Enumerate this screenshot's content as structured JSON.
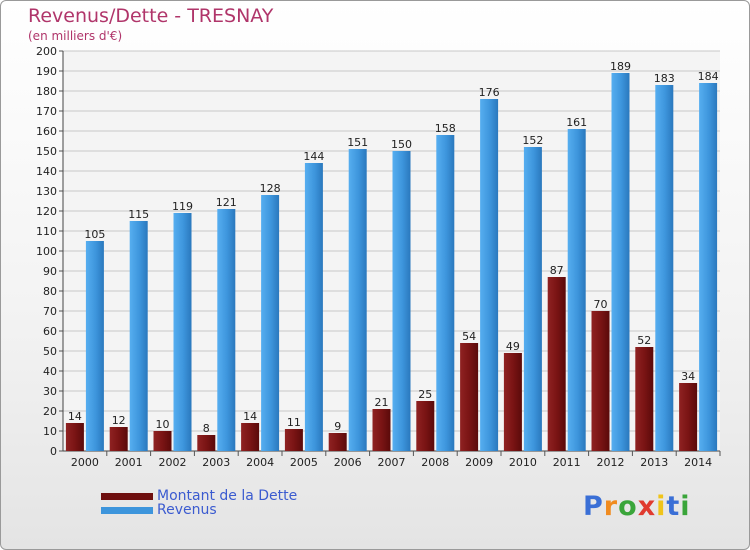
{
  "header": {
    "title": "Revenus/Dette - TRESNAY",
    "subtitle": "(en milliers d'€)"
  },
  "chart_data": {
    "type": "bar",
    "title": "Revenus/Dette - TRESNAY",
    "subtitle": "(en milliers d'€)",
    "categories": [
      "2000",
      "2001",
      "2002",
      "2003",
      "2004",
      "2005",
      "2006",
      "2007",
      "2008",
      "2009",
      "2010",
      "2011",
      "2012",
      "2013",
      "2014"
    ],
    "series": [
      {
        "name": "Montant de la Dette",
        "color": "#7a1414",
        "values": [
          14,
          12,
          10,
          8,
          14,
          11,
          9,
          21,
          25,
          54,
          49,
          87,
          70,
          52,
          34
        ]
      },
      {
        "name": "Revenus",
        "color": "#3d95dc",
        "values": [
          105,
          115,
          119,
          121,
          128,
          144,
          151,
          150,
          158,
          176,
          152,
          161,
          189,
          183,
          184
        ]
      }
    ],
    "ylim": [
      0,
      200
    ],
    "yticks": [
      0,
      10,
      20,
      30,
      40,
      50,
      60,
      70,
      80,
      90,
      100,
      110,
      120,
      130,
      140,
      150,
      160,
      170,
      180,
      190,
      200
    ],
    "grid": true,
    "legend": "bottom-left"
  },
  "legend": {
    "items": [
      {
        "label": "Montant de la Dette",
        "color": "#6e0f0f"
      },
      {
        "label": "Revenus",
        "color": "#3d95dc"
      }
    ]
  },
  "logo": {
    "letters": [
      "P",
      "r",
      "o",
      "x",
      "i",
      "t",
      "i"
    ],
    "colors": [
      "#3a6fd6",
      "#f08b1f",
      "#3aa53a",
      "#e03a2f",
      "#f0c419",
      "#3a6fd6",
      "#3aa53a"
    ]
  }
}
